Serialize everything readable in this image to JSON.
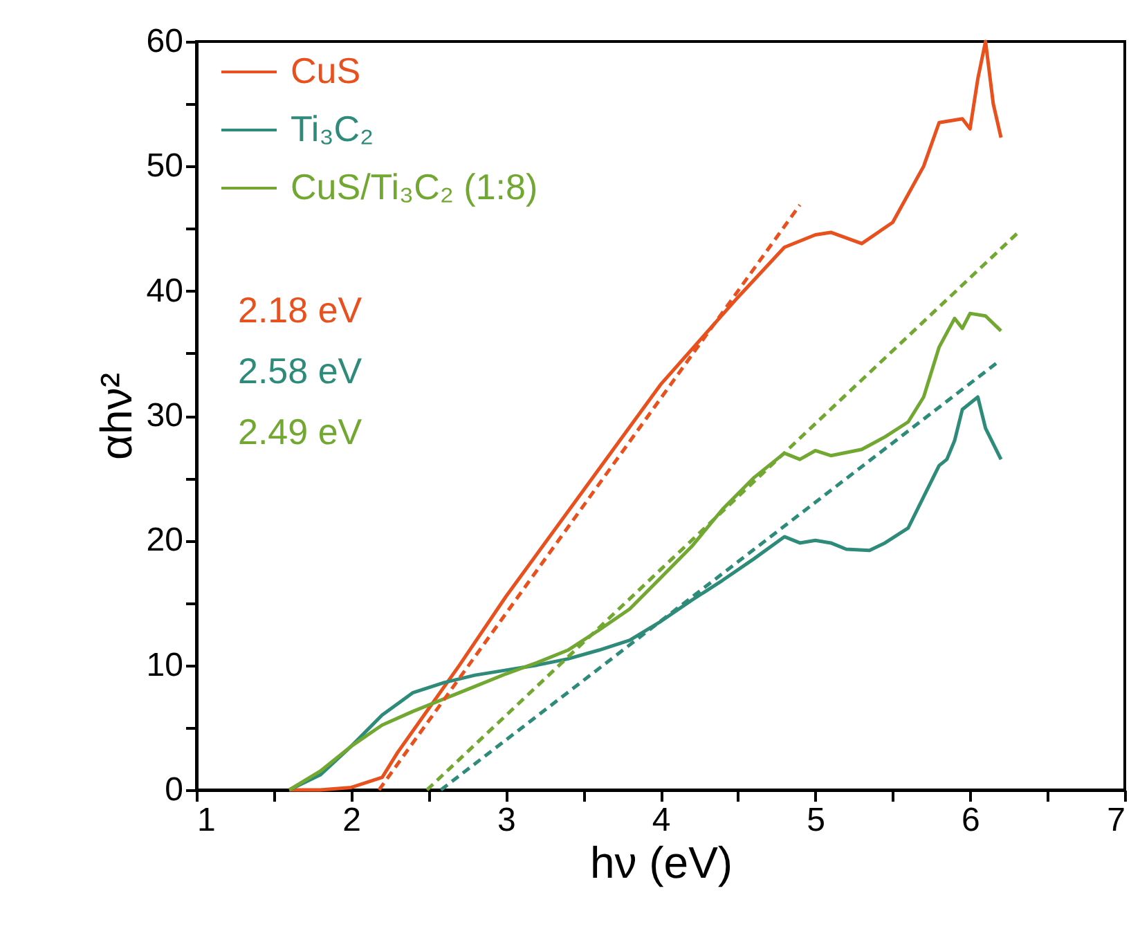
{
  "chart_data": {
    "type": "line",
    "xlabel": "hν (eV)",
    "ylabel": "αhν²",
    "xlim": [
      1,
      7
    ],
    "ylim": [
      0,
      60
    ],
    "xticks": [
      1,
      {
        "value": 1.5,
        "label": null
      },
      2,
      {
        "value": 2.5,
        "label": null
      },
      3,
      {
        "value": 3.5,
        "label": null
      },
      4,
      {
        "value": 4.5,
        "label": null
      },
      5,
      {
        "value": 5.5,
        "label": null
      },
      6,
      {
        "value": 6.5,
        "label": null
      },
      7
    ],
    "yticks": [
      0,
      {
        "value": 5,
        "label": null
      },
      10,
      {
        "value": 15,
        "label": null
      },
      20,
      {
        "value": 25,
        "label": null
      },
      30,
      {
        "value": 35,
        "label": null
      },
      40,
      {
        "value": 45,
        "label": null
      },
      50,
      {
        "value": 55,
        "label": null
      },
      60
    ],
    "grid": false,
    "legend": "top left",
    "line_style": "solid",
    "series": [
      {
        "name": "CuS",
        "color": "#e8501e",
        "x": [
          1.6,
          1.8,
          2.0,
          2.2,
          2.3,
          2.5,
          2.7,
          3.0,
          3.5,
          4.0,
          4.5,
          4.8,
          5.0,
          5.1,
          5.3,
          5.5,
          5.7,
          5.8,
          5.95,
          6.0,
          6.05,
          6.1,
          6.15,
          6.2
        ],
        "values": [
          0,
          0,
          0.2,
          1,
          3,
          6.5,
          10,
          15.5,
          24,
          32.5,
          39.5,
          43.5,
          44.5,
          44.7,
          43.8,
          45.5,
          50,
          53.5,
          53.8,
          53,
          57,
          60,
          55,
          52.3
        ]
      },
      {
        "name": "Ti₃C₂",
        "color": "#2e8b7a",
        "x": [
          1.6,
          1.8,
          2.0,
          2.2,
          2.4,
          2.6,
          2.8,
          3.0,
          3.2,
          3.4,
          3.6,
          3.8,
          4.0,
          4.2,
          4.4,
          4.6,
          4.8,
          4.9,
          5.0,
          5.1,
          5.2,
          5.35,
          5.45,
          5.6,
          5.7,
          5.8,
          5.85,
          5.9,
          5.95,
          6.05,
          6.1,
          6.2
        ],
        "values": [
          0,
          1.2,
          3.5,
          6,
          7.8,
          8.6,
          9.2,
          9.6,
          10,
          10.5,
          11.2,
          12,
          13.5,
          15.2,
          16.8,
          18.5,
          20.3,
          19.8,
          20,
          19.8,
          19.3,
          19.2,
          19.8,
          21,
          23.5,
          26,
          26.5,
          28,
          30.5,
          31.5,
          29,
          26.5
        ]
      },
      {
        "name": "CuS/Ti₃C₂ (1:8)",
        "color": "#72a832",
        "x": [
          1.6,
          1.8,
          2.0,
          2.2,
          2.4,
          2.6,
          2.8,
          3.0,
          3.2,
          3.4,
          3.6,
          3.8,
          4.0,
          4.2,
          4.4,
          4.6,
          4.7,
          4.8,
          4.9,
          5.0,
          5.1,
          5.3,
          5.45,
          5.6,
          5.7,
          5.8,
          5.9,
          5.95,
          6.0,
          6.1,
          6.2
        ],
        "values": [
          0,
          1.5,
          3.5,
          5.2,
          6.3,
          7.3,
          8.3,
          9.3,
          10.2,
          11.2,
          12.8,
          14.5,
          17,
          19.5,
          22.5,
          25,
          26,
          27,
          26.5,
          27.2,
          26.8,
          27.3,
          28.3,
          29.5,
          31.5,
          35.5,
          37.8,
          37,
          38.2,
          38,
          36.8
        ]
      },
      {
        "type": "line",
        "line_style": "dashed",
        "color": "#e8501e",
        "x": [
          2.18,
          4.9
        ],
        "values": [
          0,
          46.9
        ]
      },
      {
        "type": "line",
        "line_style": "dashed",
        "color": "#2e8b7a",
        "x": [
          2.58,
          6.18
        ],
        "values": [
          0,
          34.3
        ]
      },
      {
        "type": "line",
        "line_style": "dashed",
        "color": "#72a832",
        "x": [
          2.49,
          6.32
        ],
        "values": [
          0,
          44.8
        ]
      }
    ],
    "annotations": [
      "2.18 eV",
      "2.58 eV",
      "2.49 eV"
    ]
  }
}
